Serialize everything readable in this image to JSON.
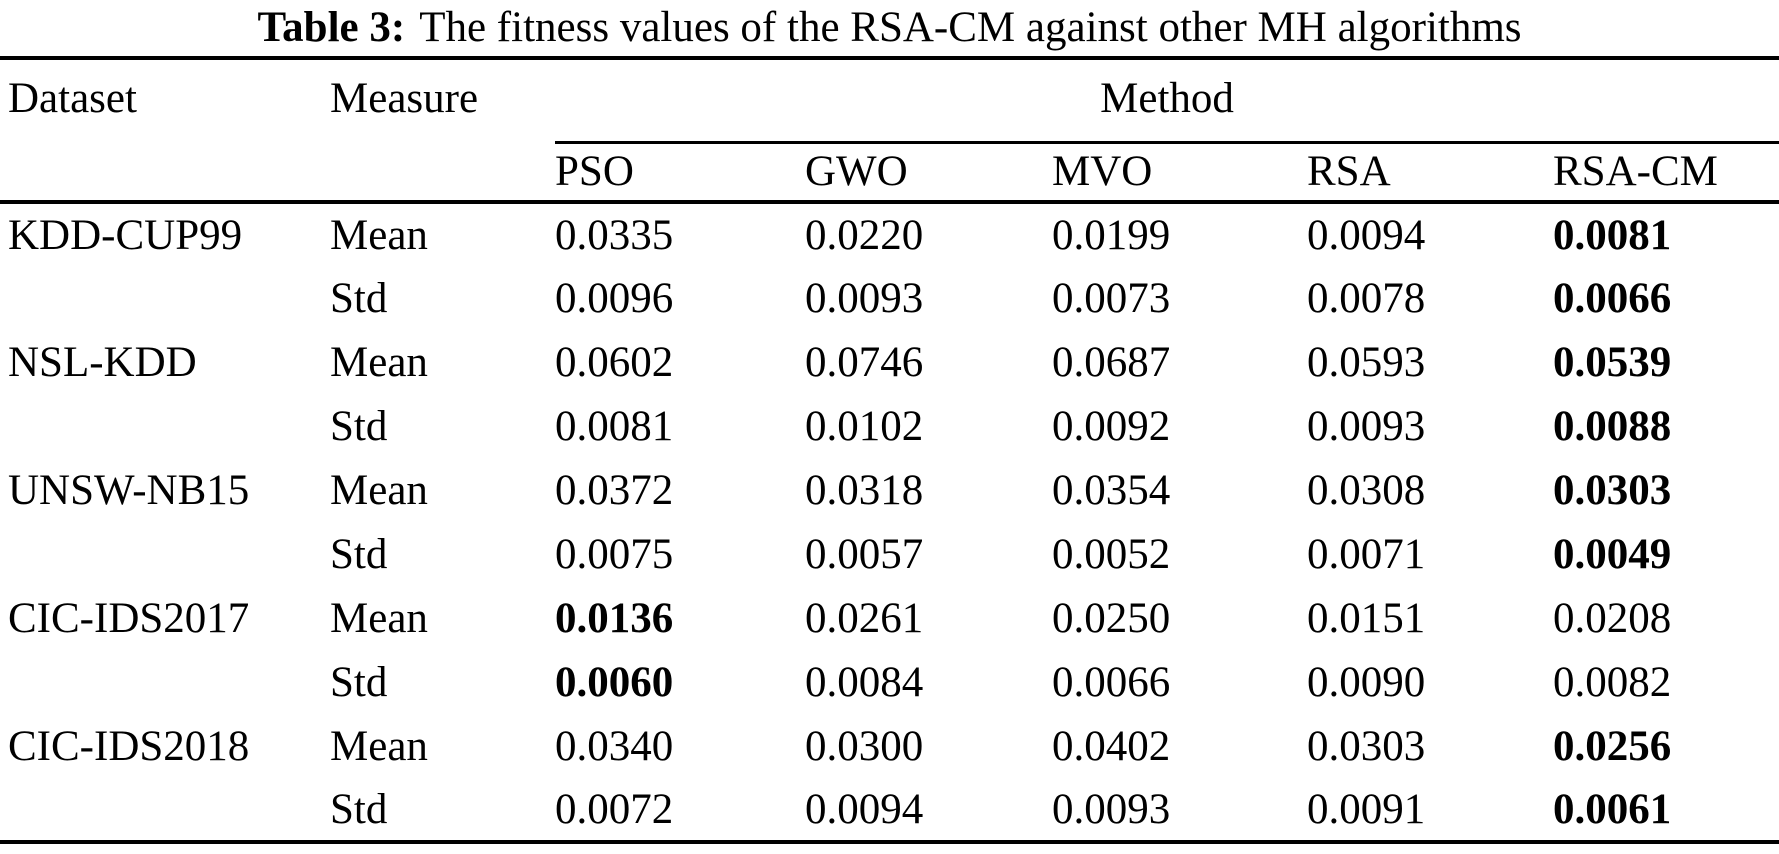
{
  "page": {
    "background_color": "#ffffff",
    "text_color": "#000000"
  },
  "table": {
    "caption": {
      "label": "Table 3:",
      "text": "The fitness values of the RSA-CM against other MH algorithms"
    },
    "headers": {
      "dataset": "Dataset",
      "measure": "Measure",
      "method_group": "Method",
      "methods": [
        "PSO",
        "GWO",
        "MVO",
        "RSA",
        "RSA-CM"
      ]
    },
    "rows": [
      {
        "dataset": "KDD-CUP99",
        "measure": "Mean",
        "values": [
          "0.0335",
          "0.0220",
          "0.0199",
          "0.0094",
          "0.0081"
        ],
        "bold": [
          false,
          false,
          false,
          false,
          true
        ]
      },
      {
        "dataset": "",
        "measure": "Std",
        "values": [
          "0.0096",
          "0.0093",
          "0.0073",
          "0.0078",
          "0.0066"
        ],
        "bold": [
          false,
          false,
          false,
          false,
          true
        ]
      },
      {
        "dataset": "NSL-KDD",
        "measure": "Mean",
        "values": [
          "0.0602",
          "0.0746",
          "0.0687",
          "0.0593",
          "0.0539"
        ],
        "bold": [
          false,
          false,
          false,
          false,
          true
        ]
      },
      {
        "dataset": "",
        "measure": "Std",
        "values": [
          "0.0081",
          "0.0102",
          "0.0092",
          "0.0093",
          "0.0088"
        ],
        "bold": [
          false,
          false,
          false,
          false,
          true
        ]
      },
      {
        "dataset": "UNSW-NB15",
        "measure": "Mean",
        "values": [
          "0.0372",
          "0.0318",
          "0.0354",
          "0.0308",
          "0.0303"
        ],
        "bold": [
          false,
          false,
          false,
          false,
          true
        ]
      },
      {
        "dataset": "",
        "measure": "Std",
        "values": [
          "0.0075",
          "0.0057",
          "0.0052",
          "0.0071",
          "0.0049"
        ],
        "bold": [
          false,
          false,
          false,
          false,
          true
        ]
      },
      {
        "dataset": "CIC-IDS2017",
        "measure": "Mean",
        "values": [
          "0.0136",
          "0.0261",
          "0.0250",
          "0.0151",
          "0.0208"
        ],
        "bold": [
          true,
          false,
          false,
          false,
          false
        ]
      },
      {
        "dataset": "",
        "measure": "Std",
        "values": [
          "0.0060",
          "0.0084",
          "0.0066",
          "0.0090",
          "0.0082"
        ],
        "bold": [
          true,
          false,
          false,
          false,
          false
        ]
      },
      {
        "dataset": "CIC-IDS2018",
        "measure": "Mean",
        "values": [
          "0.0340",
          "0.0300",
          "0.0402",
          "0.0303",
          "0.0256"
        ],
        "bold": [
          false,
          false,
          false,
          false,
          true
        ]
      },
      {
        "dataset": "",
        "measure": "Std",
        "values": [
          "0.0072",
          "0.0094",
          "0.0093",
          "0.0091",
          "0.0061"
        ],
        "bold": [
          false,
          false,
          false,
          false,
          true
        ]
      }
    ]
  }
}
